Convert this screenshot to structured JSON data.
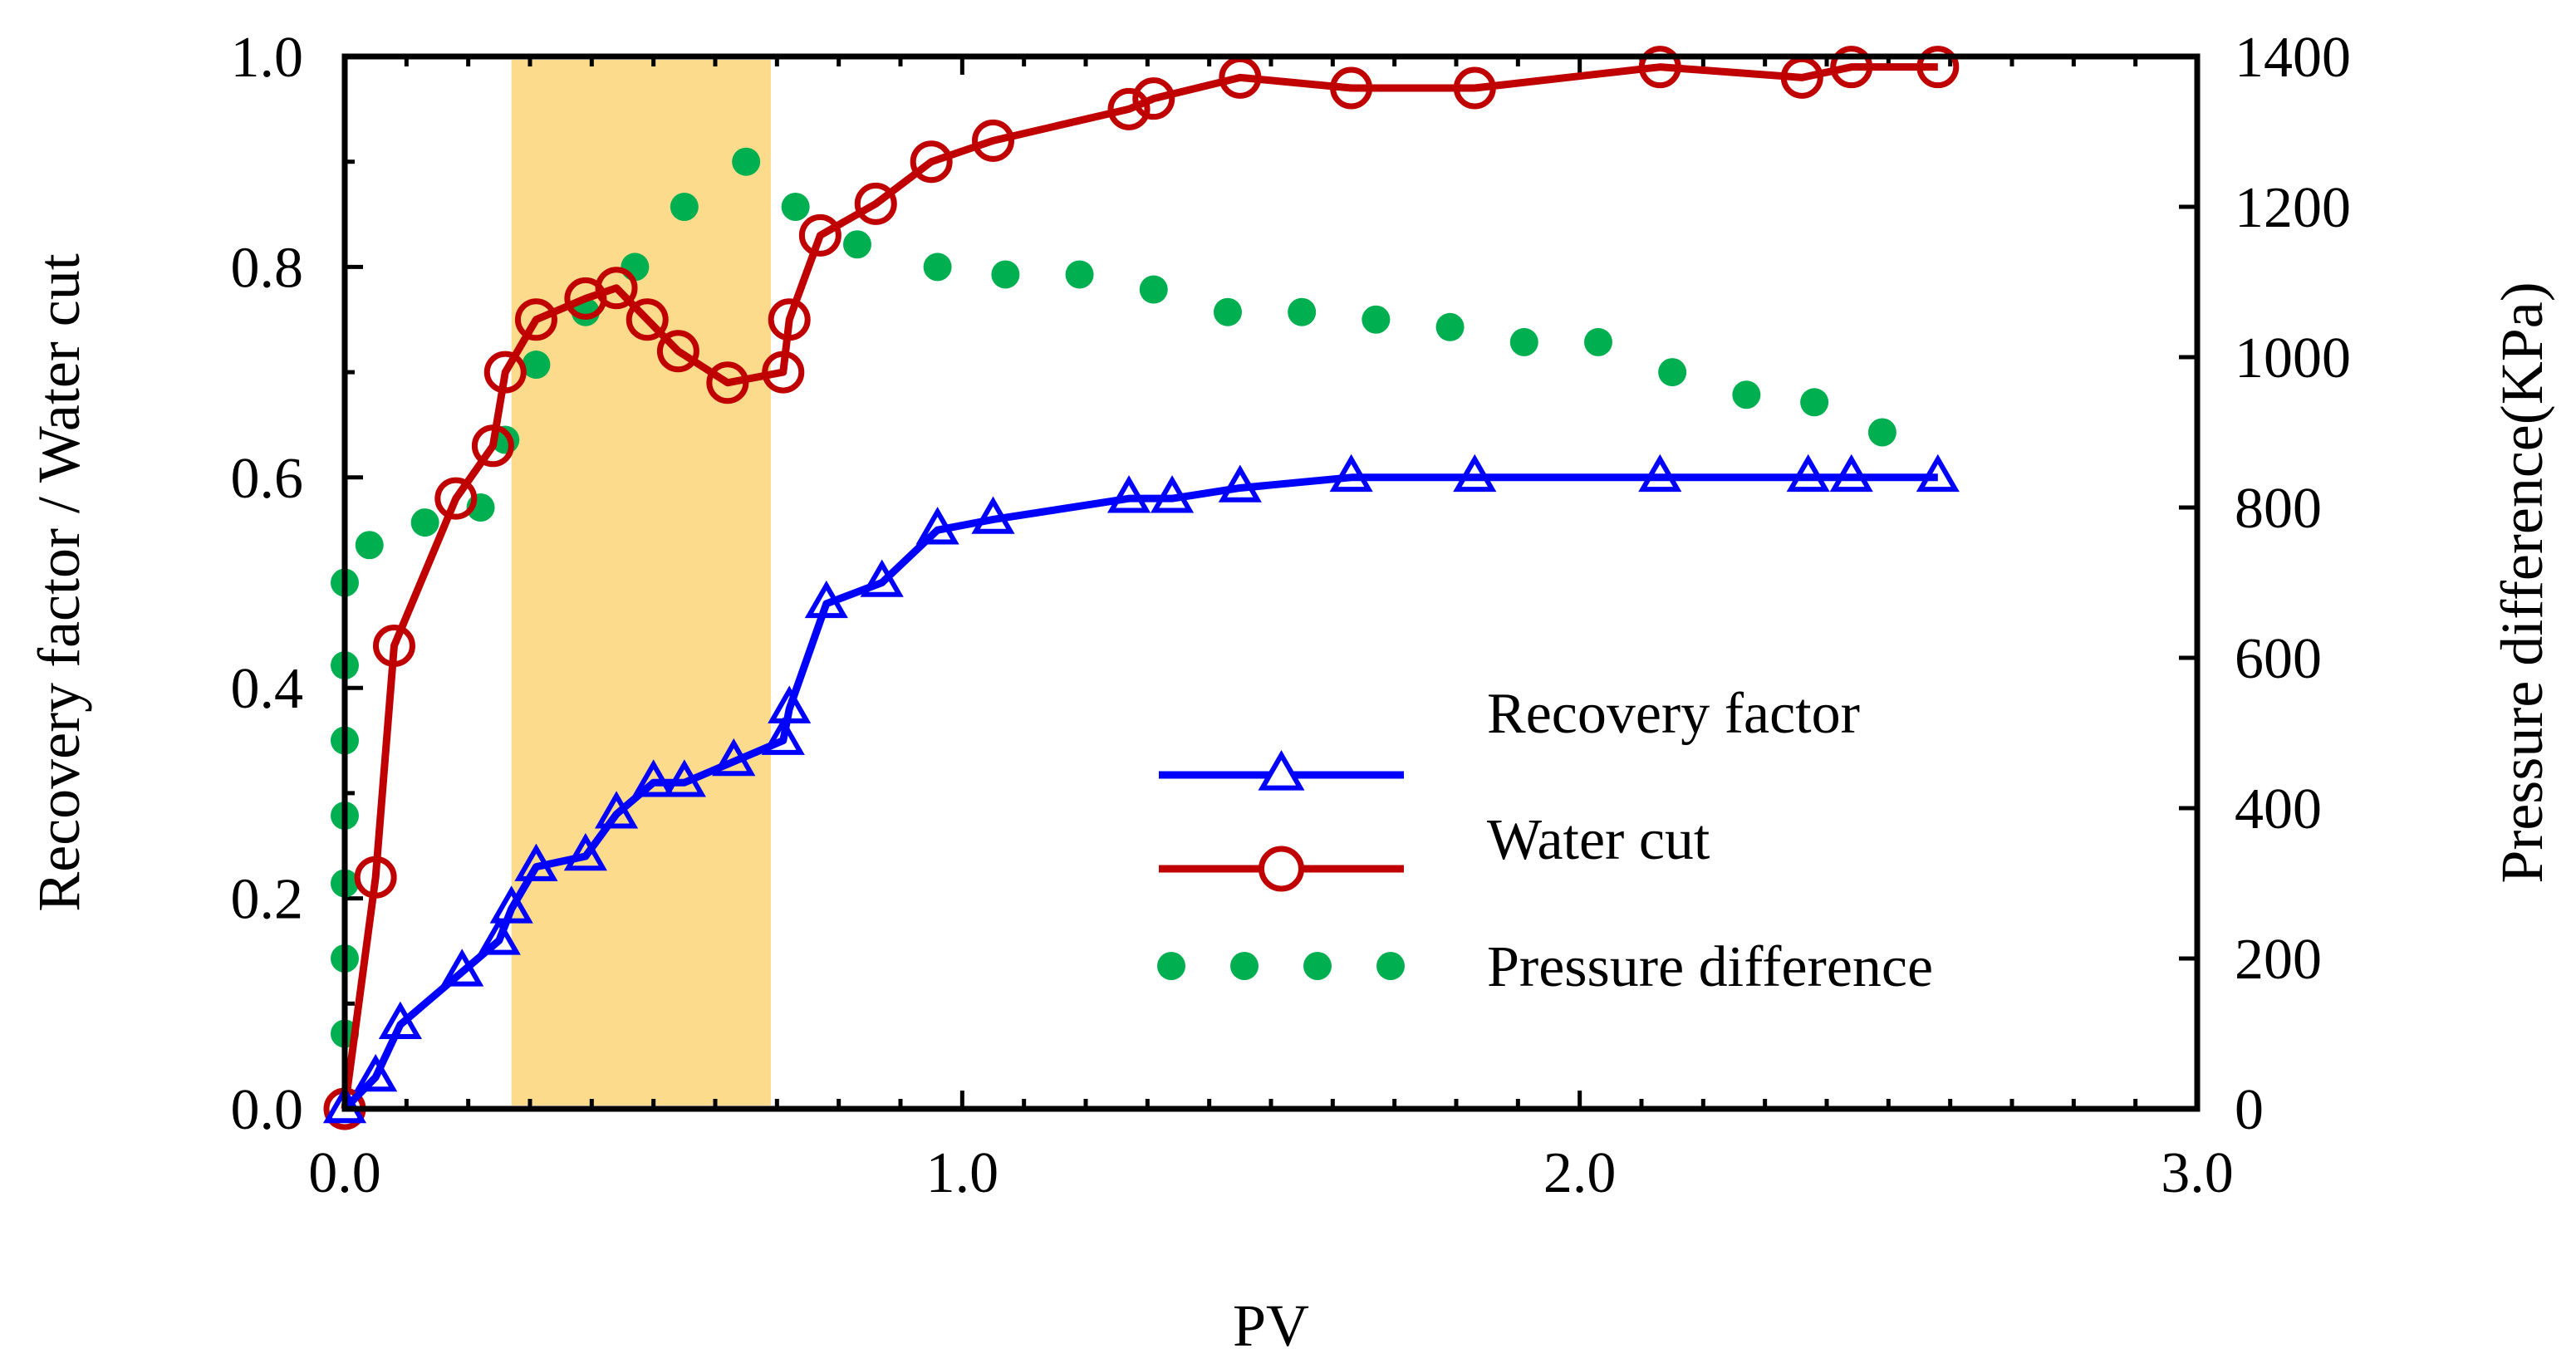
{
  "chart_data": {
    "type": "line",
    "title": "",
    "xlabel": "PV",
    "ylabel": "Recovery factor / Water cut",
    "y2label": "Pressure difference(KPa)",
    "xlim": [
      0,
      3.0
    ],
    "ylim": [
      0,
      1.0
    ],
    "y2lim": [
      0,
      1400
    ],
    "x_ticks": [
      "0.0",
      "1.0",
      "2.0",
      "3.0"
    ],
    "y_ticks": [
      "0.0",
      "0.2",
      "0.4",
      "0.6",
      "0.8",
      "1.0"
    ],
    "y2_ticks": [
      "0",
      "200",
      "400",
      "600",
      "800",
      "1000",
      "1200",
      "1400"
    ],
    "highlight_region": {
      "x_start": 0.27,
      "x_end": 0.69,
      "color": "#fcdc8c"
    },
    "series": [
      {
        "name": "Recovery factor",
        "axis": "left",
        "color": "#0000ff",
        "marker": "triangle",
        "points": [
          [
            0.0,
            0.0
          ],
          [
            0.05,
            0.03
          ],
          [
            0.09,
            0.08
          ],
          [
            0.19,
            0.13
          ],
          [
            0.25,
            0.16
          ],
          [
            0.27,
            0.19
          ],
          [
            0.31,
            0.23
          ],
          [
            0.39,
            0.24
          ],
          [
            0.44,
            0.28
          ],
          [
            0.5,
            0.31
          ],
          [
            0.55,
            0.31
          ],
          [
            0.63,
            0.33
          ],
          [
            0.71,
            0.35
          ],
          [
            0.72,
            0.38
          ],
          [
            0.78,
            0.48
          ],
          [
            0.87,
            0.5
          ],
          [
            0.96,
            0.55
          ],
          [
            1.05,
            0.56
          ],
          [
            1.27,
            0.58
          ],
          [
            1.34,
            0.58
          ],
          [
            1.45,
            0.59
          ],
          [
            1.63,
            0.6
          ],
          [
            1.83,
            0.6
          ],
          [
            2.13,
            0.6
          ],
          [
            2.37,
            0.6
          ],
          [
            2.44,
            0.6
          ],
          [
            2.58,
            0.6
          ]
        ]
      },
      {
        "name": "Water cut",
        "axis": "left",
        "color": "#c00000",
        "marker": "circle",
        "points": [
          [
            0.0,
            0.0
          ],
          [
            0.05,
            0.22
          ],
          [
            0.08,
            0.44
          ],
          [
            0.18,
            0.58
          ],
          [
            0.24,
            0.63
          ],
          [
            0.26,
            0.7
          ],
          [
            0.31,
            0.75
          ],
          [
            0.39,
            0.77
          ],
          [
            0.44,
            0.78
          ],
          [
            0.49,
            0.75
          ],
          [
            0.54,
            0.72
          ],
          [
            0.62,
            0.69
          ],
          [
            0.71,
            0.7
          ],
          [
            0.72,
            0.75
          ],
          [
            0.77,
            0.83
          ],
          [
            0.86,
            0.86
          ],
          [
            0.95,
            0.9
          ],
          [
            1.05,
            0.92
          ],
          [
            1.27,
            0.95
          ],
          [
            1.31,
            0.96
          ],
          [
            1.45,
            0.98
          ],
          [
            1.63,
            0.97
          ],
          [
            1.83,
            0.97
          ],
          [
            2.13,
            0.99
          ],
          [
            2.36,
            0.98
          ],
          [
            2.44,
            0.99
          ],
          [
            2.58,
            0.99
          ]
        ]
      },
      {
        "name": "Pressure difference",
        "axis": "right",
        "color": "#00b050",
        "marker": "dot",
        "points": [
          [
            0.0,
            100
          ],
          [
            0.0,
            200
          ],
          [
            0.0,
            300
          ],
          [
            0.0,
            390
          ],
          [
            0.0,
            490
          ],
          [
            0.0,
            590
          ],
          [
            0.0,
            700
          ],
          [
            0.04,
            750
          ],
          [
            0.13,
            780
          ],
          [
            0.22,
            800
          ],
          [
            0.26,
            890
          ],
          [
            0.31,
            990
          ],
          [
            0.39,
            1060
          ],
          [
            0.47,
            1120
          ],
          [
            0.55,
            1200
          ],
          [
            0.65,
            1260
          ],
          [
            0.73,
            1200
          ],
          [
            0.83,
            1150
          ],
          [
            0.96,
            1120
          ],
          [
            1.07,
            1110
          ],
          [
            1.19,
            1110
          ],
          [
            1.31,
            1090
          ],
          [
            1.43,
            1060
          ],
          [
            1.55,
            1060
          ],
          [
            1.67,
            1050
          ],
          [
            1.79,
            1040
          ],
          [
            1.91,
            1020
          ],
          [
            2.03,
            1020
          ],
          [
            2.15,
            980
          ],
          [
            2.27,
            950
          ],
          [
            2.38,
            940
          ],
          [
            2.49,
            900
          ]
        ]
      }
    ],
    "legend": {
      "placement": "center-right",
      "items": [
        {
          "label": "Recovery factor",
          "marker": "triangle",
          "color": "#0000ff"
        },
        {
          "label": "Water cut",
          "marker": "circle",
          "color": "#c00000"
        },
        {
          "label": "Pressure difference",
          "marker": "dot",
          "color": "#00b050"
        }
      ]
    }
  }
}
